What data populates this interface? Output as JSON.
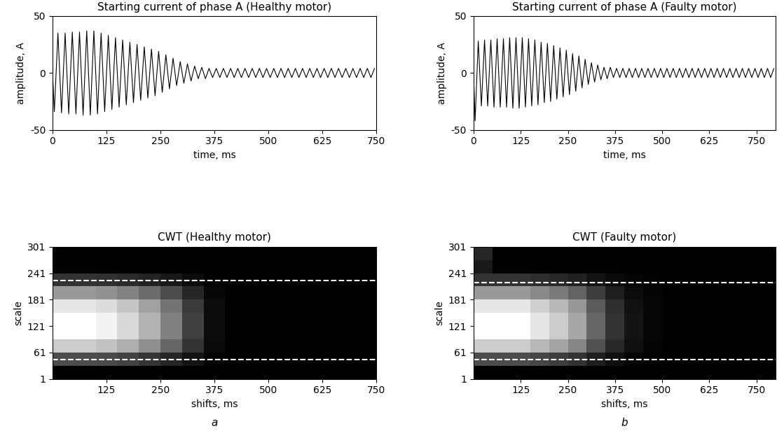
{
  "chart_data": [
    {
      "type": "line",
      "title": "Starting current of phase A (Healthy motor)",
      "x_label": "time, ms",
      "y_label": "amplitude, A",
      "x": [
        0,
        4.2,
        12.5,
        20.8,
        29.2,
        37.5,
        45.8,
        54.2,
        62.5,
        70.8,
        79.2,
        87.5,
        95.8,
        104.2,
        112.5,
        120.8,
        129.2,
        137.5,
        145.8,
        154.2,
        162.5,
        170.8,
        179.2,
        187.5,
        195.8,
        204.2,
        212.5,
        220.8,
        229.2,
        237.5,
        245.8,
        254.2,
        262.5,
        270.8,
        279.2,
        287.5,
        295.8,
        304.2,
        312.5,
        320.8,
        329.2,
        337.5,
        345.8,
        354.2,
        362.5,
        370.8,
        379.2,
        387.5,
        395.8,
        404.2,
        412.5,
        420.8,
        429.2,
        437.5,
        445.8,
        454.2,
        462.5,
        470.8,
        479.2,
        487.5,
        495.8,
        504.2,
        512.5,
        520.8,
        529.2,
        537.5,
        545.8,
        554.2,
        562.5,
        570.8,
        579.2,
        587.5,
        595.8,
        604.2,
        612.5,
        620.8,
        629.2,
        637.5,
        645.8,
        654.2,
        662.5,
        670.8,
        679.2,
        687.5,
        695.8,
        704.2,
        712.5,
        720.8,
        729.2,
        737.5,
        745.8
      ],
      "values": [
        0,
        -34,
        35,
        -35,
        35,
        -36,
        36,
        -36,
        36,
        -37,
        37,
        -37,
        37,
        -36,
        35,
        -34,
        33,
        -32,
        31,
        -30,
        29,
        -28,
        27,
        -26,
        25,
        -24,
        23,
        -22,
        21,
        -20,
        19,
        -17,
        16,
        -14,
        13,
        -11,
        10,
        -9,
        8,
        -7,
        6,
        -5,
        5,
        -5,
        4,
        -4,
        4,
        -4,
        4,
        -4,
        4,
        -4,
        4,
        -4,
        4,
        -4,
        4,
        -4,
        4,
        -4,
        4,
        -4,
        4,
        -4,
        4,
        -4,
        4,
        -4,
        4,
        -4,
        4,
        -4,
        4,
        -4,
        4,
        -4,
        4,
        -4,
        4,
        -4,
        4,
        -4,
        4,
        -4,
        4,
        -4,
        4,
        -4,
        4,
        -4,
        4
      ],
      "color": "#000000",
      "xlim": [
        0,
        750
      ],
      "xticks": [
        0,
        125,
        250,
        375,
        500,
        625,
        750
      ],
      "ylim": [
        -50,
        50
      ],
      "yticks": [
        -50,
        0,
        50
      ]
    },
    {
      "type": "line",
      "title": "Starting current of phase A (Faulty motor)",
      "x_label": "time, ms",
      "y_label": "amplitude, A",
      "x": [
        0,
        4.2,
        12.5,
        20.8,
        29.2,
        37.5,
        45.8,
        54.2,
        62.5,
        70.8,
        79.2,
        87.5,
        95.8,
        104.2,
        112.5,
        120.8,
        129.2,
        137.5,
        145.8,
        154.2,
        162.5,
        170.8,
        179.2,
        187.5,
        195.8,
        204.2,
        212.5,
        220.8,
        229.2,
        237.5,
        245.8,
        254.2,
        262.5,
        270.8,
        279.2,
        287.5,
        295.8,
        304.2,
        312.5,
        320.8,
        329.2,
        337.5,
        345.8,
        354.2,
        362.5,
        370.8,
        379.2,
        387.5,
        395.8,
        404.2,
        412.5,
        420.8,
        429.2,
        437.5,
        445.8,
        454.2,
        462.5,
        470.8,
        479.2,
        487.5,
        495.8,
        504.2,
        512.5,
        520.8,
        529.2,
        537.5,
        545.8,
        554.2,
        562.5,
        570.8,
        579.2,
        587.5,
        595.8,
        604.2,
        612.5,
        620.8,
        629.2,
        637.5,
        645.8,
        654.2,
        662.5,
        670.8,
        679.2,
        687.5,
        695.8,
        704.2,
        712.5,
        720.8,
        729.2,
        737.5,
        745.8,
        754.2,
        762.5,
        770.8,
        779.2,
        787.5,
        795.8
      ],
      "values": [
        0,
        -42,
        28,
        -29,
        29,
        -29,
        29,
        -30,
        30,
        -30,
        30,
        -30,
        31,
        -31,
        31,
        -31,
        31,
        -30,
        30,
        -29,
        29,
        -28,
        27,
        -26,
        26,
        -25,
        24,
        -23,
        22,
        -21,
        20,
        -19,
        17,
        -16,
        15,
        -13,
        12,
        -10,
        9,
        -8,
        7,
        -6,
        5,
        -5,
        5,
        -4,
        4,
        -4,
        4,
        -4,
        4,
        -4,
        4,
        -4,
        4,
        -4,
        4,
        -4,
        4,
        -4,
        4,
        -4,
        4,
        -4,
        4,
        -4,
        4,
        -4,
        4,
        -4,
        4,
        -4,
        4,
        -4,
        4,
        -4,
        4,
        -4,
        4,
        -4,
        4,
        -4,
        4,
        -4,
        4,
        -4,
        4,
        -4,
        4,
        -4,
        4,
        -4,
        4,
        -4,
        4,
        -4,
        4
      ],
      "color": "#000000",
      "xlim": [
        0,
        800
      ],
      "xticks": [
        0,
        125,
        250,
        375,
        500,
        625,
        750
      ],
      "ylim": [
        -50,
        50
      ],
      "yticks": [
        -50,
        0,
        50
      ]
    },
    {
      "type": "heatmap",
      "title": "CWT (Healthy motor)",
      "x_label": "shifts, ms",
      "y_label": "scale",
      "x_edges": [
        0,
        50,
        100,
        150,
        200,
        250,
        300,
        350,
        400,
        450,
        500,
        550,
        600,
        650,
        700,
        750
      ],
      "y_edges": [
        1,
        31,
        61,
        91,
        121,
        151,
        181,
        211,
        241,
        271,
        301
      ],
      "cells": [
        [
          0,
          0,
          0,
          0,
          0,
          0,
          0,
          0,
          0,
          0,
          0,
          0,
          0,
          0,
          0
        ],
        [
          0.3,
          0.3,
          0.29,
          0.26,
          0.21,
          0.15,
          0.08,
          0.02,
          0,
          0,
          0,
          0,
          0,
          0,
          0
        ],
        [
          0.8,
          0.8,
          0.76,
          0.68,
          0.56,
          0.4,
          0.2,
          0.04,
          0,
          0,
          0,
          0,
          0,
          0,
          0
        ],
        [
          1,
          1,
          0.95,
          0.85,
          0.7,
          0.5,
          0.25,
          0.05,
          0,
          0,
          0,
          0,
          0,
          0,
          0
        ],
        [
          1,
          1,
          0.95,
          0.85,
          0.7,
          0.5,
          0.25,
          0.05,
          0,
          0,
          0,
          0,
          0,
          0,
          0
        ],
        [
          0.9,
          0.9,
          0.86,
          0.77,
          0.63,
          0.45,
          0.23,
          0.05,
          0,
          0,
          0,
          0,
          0,
          0,
          0
        ],
        [
          0.6,
          0.6,
          0.57,
          0.51,
          0.42,
          0.3,
          0.15,
          0.03,
          0,
          0,
          0,
          0,
          0,
          0,
          0
        ],
        [
          0.2,
          0.2,
          0.19,
          0.17,
          0.14,
          0.1,
          0.05,
          0.01,
          0,
          0,
          0,
          0,
          0,
          0,
          0
        ],
        [
          0,
          0,
          0,
          0,
          0,
          0,
          0,
          0,
          0,
          0,
          0,
          0,
          0,
          0,
          0
        ],
        [
          0,
          0,
          0,
          0,
          0,
          0,
          0,
          0,
          0,
          0,
          0,
          0,
          0,
          0,
          0
        ]
      ],
      "color_range": [
        0,
        1
      ],
      "color": "gray",
      "reference_lines": [
        45,
        225
      ],
      "line_style": "dashed",
      "xlim": [
        0,
        750
      ],
      "xticks": [
        125,
        250,
        375,
        500,
        625,
        750
      ],
      "ylim": [
        1,
        301
      ],
      "yticks": [
        1,
        61,
        121,
        181,
        241,
        301
      ]
    },
    {
      "type": "heatmap",
      "title": "CWT (Faulty motor)",
      "x_label": "shifts, ms",
      "y_label": "scale",
      "x_edges": [
        0,
        50,
        100,
        150,
        200,
        250,
        300,
        350,
        400,
        450,
        500,
        550,
        600,
        650,
        700,
        750,
        800
      ],
      "y_edges": [
        1,
        31,
        61,
        91,
        121,
        151,
        181,
        211,
        241,
        271,
        301
      ],
      "cells": [
        [
          0,
          0,
          0,
          0,
          0,
          0,
          0,
          0,
          0,
          0,
          0,
          0,
          0,
          0,
          0,
          0
        ],
        [
          0.3,
          0.3,
          0.3,
          0.27,
          0.24,
          0.2,
          0.12,
          0.06,
          0.02,
          0.01,
          0,
          0,
          0,
          0,
          0,
          0
        ],
        [
          0.8,
          0.8,
          0.8,
          0.72,
          0.64,
          0.52,
          0.32,
          0.16,
          0.06,
          0.02,
          0,
          0,
          0,
          0,
          0,
          0
        ],
        [
          1,
          1,
          1,
          0.9,
          0.8,
          0.65,
          0.4,
          0.2,
          0.08,
          0.03,
          0,
          0,
          0,
          0,
          0,
          0
        ],
        [
          1,
          1,
          1,
          0.9,
          0.8,
          0.65,
          0.4,
          0.2,
          0.08,
          0.03,
          0,
          0,
          0,
          0,
          0,
          0
        ],
        [
          0.9,
          0.9,
          0.9,
          0.81,
          0.72,
          0.59,
          0.36,
          0.18,
          0.07,
          0.03,
          0,
          0,
          0,
          0,
          0,
          0
        ],
        [
          0.6,
          0.6,
          0.6,
          0.54,
          0.48,
          0.39,
          0.24,
          0.12,
          0.05,
          0.02,
          0,
          0,
          0,
          0,
          0,
          0
        ],
        [
          0.2,
          0.2,
          0.2,
          0.18,
          0.16,
          0.13,
          0.08,
          0.04,
          0.02,
          0.01,
          0,
          0,
          0,
          0,
          0,
          0
        ],
        [
          0.1,
          0,
          0,
          0,
          0,
          0,
          0,
          0,
          0,
          0,
          0,
          0,
          0,
          0,
          0,
          0
        ],
        [
          0.15,
          0,
          0,
          0,
          0,
          0,
          0,
          0,
          0,
          0,
          0,
          0,
          0,
          0,
          0,
          0
        ]
      ],
      "color_range": [
        0,
        1
      ],
      "color": "gray",
      "reference_lines": [
        45,
        220
      ],
      "line_style": "dashed",
      "xlim": [
        0,
        800
      ],
      "xticks": [
        125,
        250,
        375,
        500,
        625,
        750
      ],
      "ylim": [
        1,
        301
      ],
      "yticks": [
        1,
        61,
        121,
        181,
        241,
        301
      ]
    }
  ],
  "panel_labels": [
    "a",
    "b"
  ]
}
